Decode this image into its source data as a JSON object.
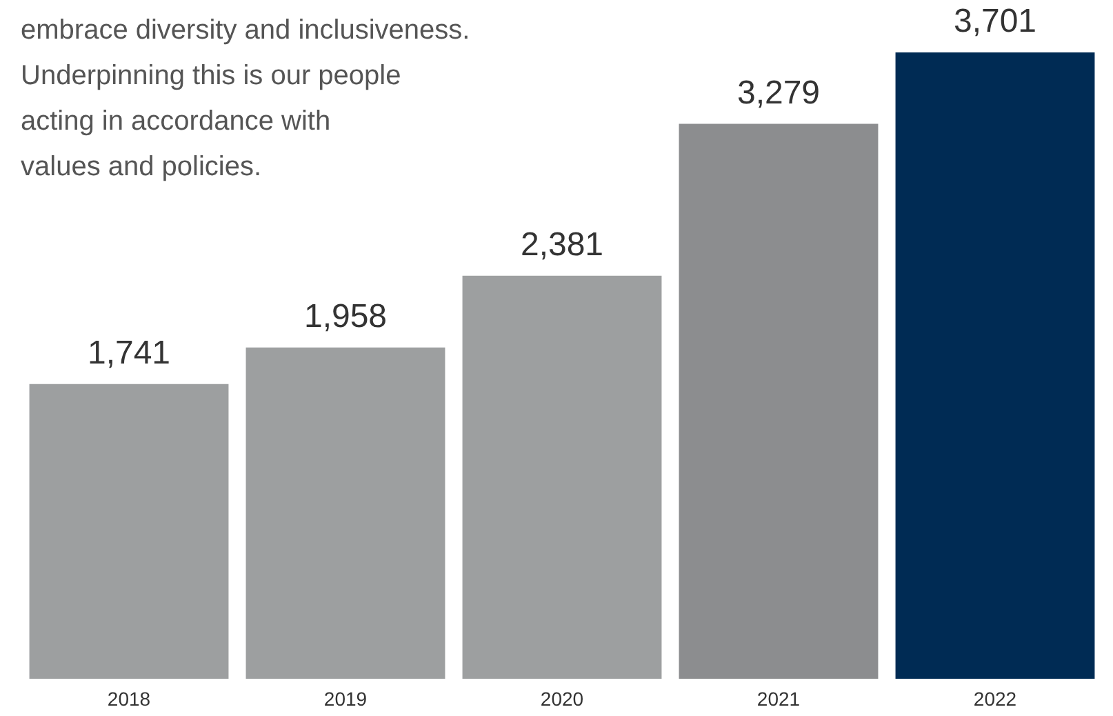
{
  "chart_data": {
    "type": "bar",
    "categories": [
      "2018",
      "2019",
      "2020",
      "2021",
      "2022"
    ],
    "values": [
      1741,
      1958,
      2381,
      3279,
      3701
    ],
    "value_labels": [
      "1,741",
      "1,958",
      "2,381",
      "3,279",
      "3,701"
    ],
    "colors": [
      "#9d9fa0",
      "#9d9fa0",
      "#9d9fa0",
      "#8c8d8f",
      "#002b54"
    ],
    "annotations": [
      "embrace diversity and inclusiveness.",
      "Underpinning this is our people",
      "acting in accordance with",
      "values and policies."
    ]
  }
}
